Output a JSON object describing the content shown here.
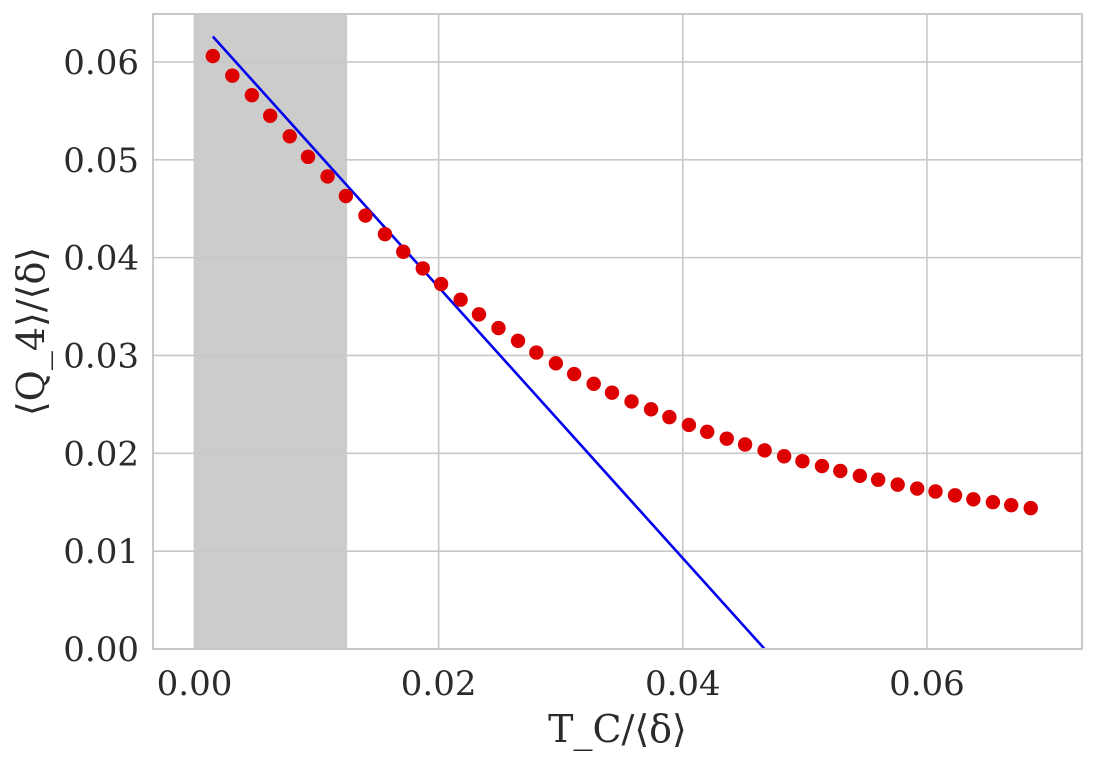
{
  "chart_data": {
    "type": "scatter",
    "xlabel": "T_C/⟨δ⟩",
    "ylabel": "⟨Q_4⟩/⟨δ⟩",
    "xlim": [
      -0.0034,
      0.0727
    ],
    "ylim": [
      0.0,
      0.0649
    ],
    "x_ticks": [
      0.0,
      0.02,
      0.04,
      0.06
    ],
    "x_tick_labels": [
      "0.00",
      "0.02",
      "0.04",
      "0.06"
    ],
    "y_ticks": [
      0.0,
      0.01,
      0.02,
      0.03,
      0.04,
      0.05,
      0.06
    ],
    "y_tick_labels": [
      "0.00",
      "0.01",
      "0.02",
      "0.03",
      "0.04",
      "0.05",
      "0.06"
    ],
    "grid": true,
    "shaded_region": {
      "x_start": 0.0,
      "x_end": 0.0125,
      "color": "#cccccc"
    },
    "series": [
      {
        "kind": "scatter",
        "color": "#dd0000",
        "x": [
          0.0015,
          0.0031,
          0.0047,
          0.0062,
          0.0078,
          0.0093,
          0.0109,
          0.0124,
          0.014,
          0.0156,
          0.0171,
          0.0187,
          0.0202,
          0.0218,
          0.0233,
          0.0249,
          0.0265,
          0.028,
          0.0296,
          0.0311,
          0.0327,
          0.0342,
          0.0358,
          0.0374,
          0.0389,
          0.0405,
          0.042,
          0.0436,
          0.0451,
          0.0467,
          0.0483,
          0.0498,
          0.0514,
          0.0529,
          0.0545,
          0.056,
          0.0576,
          0.0592,
          0.0607,
          0.0623,
          0.0638,
          0.0654,
          0.0669,
          0.0685
        ],
        "y": [
          0.0606,
          0.0586,
          0.0566,
          0.0545,
          0.0524,
          0.0503,
          0.0483,
          0.0463,
          0.0443,
          0.0424,
          0.0406,
          0.0389,
          0.0373,
          0.0357,
          0.0342,
          0.0328,
          0.0315,
          0.0303,
          0.0292,
          0.0281,
          0.0271,
          0.0262,
          0.0253,
          0.0245,
          0.0237,
          0.0229,
          0.0222,
          0.0215,
          0.0209,
          0.0203,
          0.0197,
          0.0192,
          0.0187,
          0.0182,
          0.0177,
          0.0173,
          0.0168,
          0.0164,
          0.0161,
          0.0157,
          0.0153,
          0.015,
          0.0147,
          0.0144
        ]
      },
      {
        "kind": "line",
        "color": "#0000ee",
        "x": [
          0.0015,
          0.0467
        ],
        "y": [
          0.0626,
          0.0
        ]
      }
    ]
  }
}
